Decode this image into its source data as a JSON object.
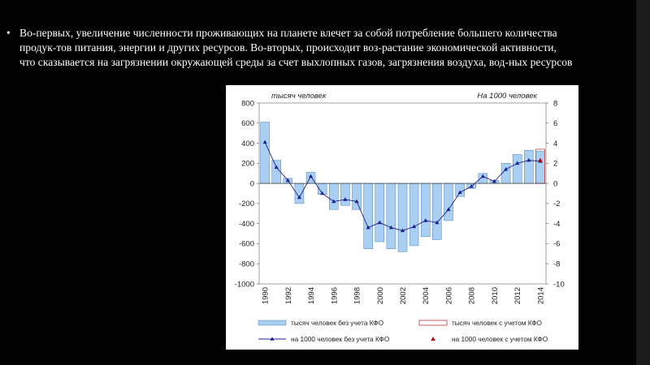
{
  "slide": {
    "bullet": "•",
    "text": "Во-первых, увеличение численности проживающих на планете влечет за собой потребление большего количества продук-тов питания, энергии и других ресурсов. Во-вторых, происходит воз-растание экономической активности, что сказывается на загрязнении окружающей среды за счет выхлопных газов, загрязнения воздуха, вод-ных ресурсов"
  },
  "chart_data": {
    "type": "bar",
    "left_axis_label": "тысяч человек",
    "right_axis_label": "На 1000 человек",
    "ylim_left": [
      -1000,
      800
    ],
    "ylim_right": [
      -10,
      8
    ],
    "yticks_left": [
      "800",
      "600",
      "400",
      "200",
      "0",
      "-200",
      "-400",
      "-600",
      "-800",
      "-1000"
    ],
    "yticks_right": [
      "8",
      "6",
      "4",
      "2",
      "0",
      "-2",
      "-4",
      "-6",
      "-8",
      "-10"
    ],
    "x_tick_labels": [
      "1990",
      "1992",
      "1994",
      "1996",
      "1998",
      "2000",
      "2002",
      "2004",
      "2006",
      "2008",
      "2010",
      "2012",
      "2014"
    ],
    "categories": [
      1990,
      1991,
      1992,
      1993,
      1994,
      1995,
      1996,
      1997,
      1998,
      1999,
      2000,
      2001,
      2002,
      2003,
      2004,
      2005,
      2006,
      2007,
      2008,
      2009,
      2010,
      2011,
      2012,
      2013,
      2014
    ],
    "series": [
      {
        "name": "тысяч человек без учета КФО",
        "kind": "bar",
        "color": "#a9cff2",
        "border": "#4f81bd",
        "values": [
          610,
          230,
          50,
          -200,
          110,
          -110,
          -260,
          -220,
          -260,
          -650,
          -580,
          -650,
          -680,
          -620,
          -530,
          -560,
          -370,
          -130,
          -50,
          100,
          30,
          200,
          290,
          330,
          320
        ]
      },
      {
        "name": "тысяч человек с учетом КФО",
        "kind": "bar",
        "color": "#ffffff",
        "border": "#c0504d",
        "values": [
          null,
          null,
          null,
          null,
          null,
          null,
          null,
          null,
          null,
          null,
          null,
          null,
          null,
          null,
          null,
          null,
          null,
          null,
          null,
          null,
          null,
          null,
          null,
          null,
          340
        ]
      },
      {
        "name": "на 1000 человек без учета КФО",
        "kind": "line",
        "axis": "right",
        "color": "#1f1f8f",
        "values": [
          4.1,
          1.6,
          0.3,
          -1.4,
          0.7,
          -1.0,
          -1.8,
          -1.6,
          -1.8,
          -4.4,
          -3.9,
          -4.4,
          -4.7,
          -4.3,
          -3.7,
          -3.9,
          -2.6,
          -0.9,
          -0.3,
          0.7,
          0.2,
          1.4,
          2.0,
          2.3,
          2.2
        ]
      },
      {
        "name": "на 1000 человек с учетом КФО",
        "kind": "marker",
        "axis": "right",
        "color": "#c00000",
        "values": [
          null,
          null,
          null,
          null,
          null,
          null,
          null,
          null,
          null,
          null,
          null,
          null,
          null,
          null,
          null,
          null,
          null,
          null,
          null,
          null,
          null,
          null,
          null,
          null,
          2.3
        ]
      }
    ],
    "grid": true
  }
}
